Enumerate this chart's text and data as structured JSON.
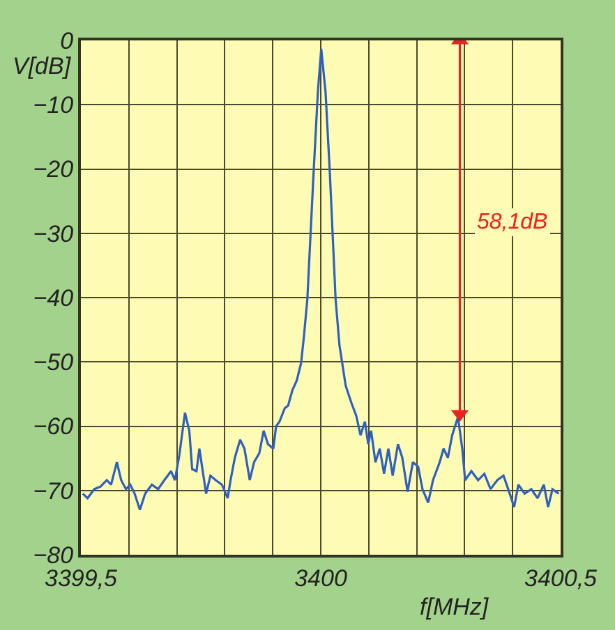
{
  "chart_data": {
    "type": "line",
    "xlabel": "f[MHz]",
    "ylabel": "V[dB]",
    "xlim": [
      3399.5,
      3400.5
    ],
    "ylim": [
      -80,
      0
    ],
    "xticks": [
      {
        "value": 3399.5,
        "label": "3399,5"
      },
      {
        "value": 3399.6,
        "label": null
      },
      {
        "value": 3399.7,
        "label": null
      },
      {
        "value": 3399.8,
        "label": null
      },
      {
        "value": 3399.9,
        "label": null
      },
      {
        "value": 3400,
        "label": "3400"
      },
      {
        "value": 3400.1,
        "label": null
      },
      {
        "value": 3400.2,
        "label": null
      },
      {
        "value": 3400.3,
        "label": null
      },
      {
        "value": 3400.4,
        "label": null
      },
      {
        "value": 3400.5,
        "label": "3400,5"
      }
    ],
    "yticks": [
      0,
      {
        "value": -10,
        "label": "−10"
      },
      {
        "value": -20,
        "label": "−20"
      },
      {
        "value": -30,
        "label": "−30"
      },
      {
        "value": -40,
        "label": "−40"
      },
      {
        "value": -50,
        "label": "−50"
      },
      {
        "value": -60,
        "label": "−60"
      },
      {
        "value": -70,
        "label": "−70"
      },
      {
        "value": -80,
        "label": "−80"
      }
    ],
    "grid": true,
    "line_style": "solid",
    "series": [
      {
        "color": "#2f5fbf",
        "x": [
          3399.504,
          3399.514,
          3399.528,
          3399.541,
          3399.554,
          3399.563,
          3399.575,
          3399.584,
          3399.594,
          3399.603,
          3399.612,
          3399.623,
          3399.634,
          3399.648,
          3399.661,
          3399.674,
          3399.688,
          3399.696,
          3399.705,
          3399.717,
          3399.726,
          3399.732,
          3399.741,
          3399.747,
          3399.754,
          3399.761,
          3399.77,
          3399.781,
          3399.794,
          3399.806,
          3399.812,
          3399.821,
          3399.832,
          3399.841,
          3399.852,
          3399.861,
          3399.872,
          3399.881,
          3399.89,
          3399.901,
          3399.907,
          3399.914,
          3399.925,
          3399.932,
          3399.941,
          3399.95,
          3399.959,
          3399.965,
          3399.972,
          3399.985,
          3399.994,
          3400.001,
          3400.01,
          3400.019,
          3400.031,
          3400.039,
          3400.052,
          3400.064,
          3400.074,
          3400.083,
          3400.092,
          3400.099,
          3400.105,
          3400.114,
          3400.123,
          3400.132,
          3400.141,
          3400.15,
          3400.161,
          3400.17,
          3400.181,
          3400.192,
          3400.203,
          3400.212,
          3400.224,
          3400.234,
          3400.248,
          3400.256,
          3400.265,
          3400.274,
          3400.286,
          3400.295,
          3400.301,
          3400.314,
          3400.328,
          3400.341,
          3400.354,
          3400.368,
          3400.381,
          3400.394,
          3400.403,
          3400.412,
          3400.425,
          3400.439,
          3400.452,
          3400.465,
          3400.474,
          3400.483,
          3400.496
        ],
        "values": [
          -70.5,
          -71.2,
          -69.8,
          -69.4,
          -68.4,
          -69.1,
          -65.6,
          -68.4,
          -69.8,
          -69.1,
          -70.5,
          -73.0,
          -70.5,
          -69.1,
          -69.8,
          -68.4,
          -67.0,
          -68.4,
          -64.6,
          -57.9,
          -60.7,
          -66.7,
          -67.0,
          -63.5,
          -67.0,
          -70.5,
          -67.7,
          -68.4,
          -69.1,
          -71.2,
          -68.4,
          -64.9,
          -62.1,
          -63.5,
          -68.4,
          -65.6,
          -64.2,
          -60.7,
          -62.8,
          -63.5,
          -60.0,
          -59.3,
          -57.2,
          -56.8,
          -54.4,
          -52.9,
          -50.2,
          -46.0,
          -40.3,
          -20.7,
          -8.0,
          -1.3,
          -8.0,
          -20.7,
          -40.3,
          -47.4,
          -53.7,
          -56.4,
          -58.4,
          -61.4,
          -59.3,
          -62.8,
          -60.7,
          -65.6,
          -63.5,
          -67.4,
          -63.5,
          -67.7,
          -62.8,
          -64.9,
          -70.2,
          -65.6,
          -66.3,
          -69.8,
          -71.9,
          -68.4,
          -65.6,
          -63.5,
          -64.9,
          -61.4,
          -58.6,
          -63.5,
          -68.4,
          -67.0,
          -68.4,
          -67.4,
          -69.8,
          -68.4,
          -67.7,
          -70.5,
          -72.6,
          -69.1,
          -70.5,
          -69.8,
          -71.2,
          -69.1,
          -72.6,
          -69.8,
          -70.5
        ]
      },
      {
        "color": "#ee2020",
        "marker": "triangle",
        "x": [
          3400.29,
          3400.29
        ],
        "values": [
          -58.1,
          0
        ]
      }
    ],
    "annotations": [
      "58,1dB"
    ]
  }
}
